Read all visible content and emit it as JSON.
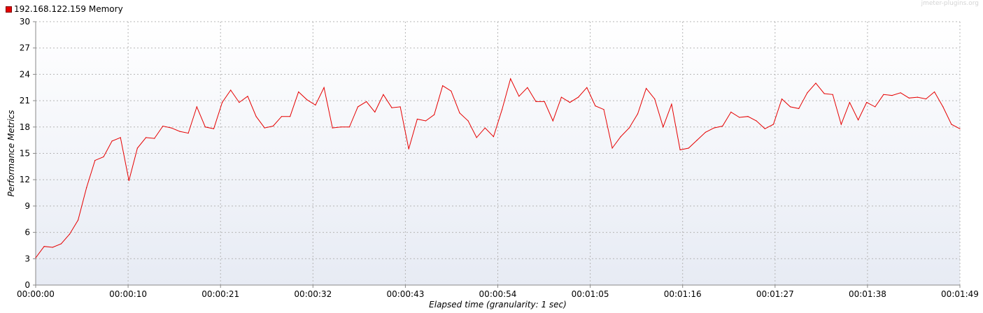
{
  "legend": {
    "label": "192.168.122.159 Memory",
    "color": "#e60000",
    "icon": "legend-square"
  },
  "watermark": "jmeter-plugins.org",
  "chart_data": {
    "type": "line",
    "title": "",
    "xlabel": "Elapsed time (granularity: 1 sec)",
    "ylabel": "Performance Metrics",
    "ylim": [
      0,
      30
    ],
    "xlim_seconds": [
      0,
      109
    ],
    "y_ticks": [
      "0",
      "3",
      "6",
      "9",
      "12",
      "15",
      "18",
      "21",
      "24",
      "27",
      "30"
    ],
    "x_ticks": [
      {
        "label": "00:00:00",
        "t": 0
      },
      {
        "label": "00:00:10",
        "t": 10.9
      },
      {
        "label": "00:00:21",
        "t": 21.8
      },
      {
        "label": "00:00:32",
        "t": 32.7
      },
      {
        "label": "00:00:43",
        "t": 43.6
      },
      {
        "label": "00:00:54",
        "t": 54.5
      },
      {
        "label": "00:01:05",
        "t": 65.4
      },
      {
        "label": "00:01:16",
        "t": 76.3
      },
      {
        "label": "00:01:27",
        "t": 87.2
      },
      {
        "label": "00:01:38",
        "t": 98.1
      },
      {
        "label": "00:01:49",
        "t": 109
      }
    ],
    "grid": true,
    "legend_position": "top-left",
    "series": [
      {
        "name": "192.168.122.159 Memory",
        "color": "#e60000",
        "x": [
          0,
          1,
          2,
          3,
          4,
          5,
          6,
          7,
          8,
          9,
          10,
          11,
          12,
          13,
          14,
          15,
          16,
          17,
          18,
          19,
          20,
          21,
          22,
          23,
          24,
          25,
          26,
          27,
          28,
          29,
          30,
          31,
          32,
          33,
          34,
          35,
          36,
          37,
          38,
          39,
          40,
          41,
          42,
          43,
          44,
          45,
          46,
          47,
          48,
          49,
          50,
          51,
          52,
          53,
          54,
          55,
          56,
          57,
          58,
          59,
          60,
          61,
          62,
          63,
          64,
          65,
          66,
          67,
          68,
          69,
          70,
          71,
          72,
          73,
          74,
          75,
          76,
          77,
          78,
          79,
          80,
          81,
          82,
          83,
          84,
          85,
          86,
          87,
          88,
          89,
          90,
          91,
          92,
          93,
          94,
          95,
          96,
          97,
          98,
          99,
          100,
          101,
          102,
          103,
          104,
          105,
          106,
          107,
          108,
          109
        ],
        "values": [
          3.1,
          4.4,
          4.3,
          4.7,
          5.8,
          7.4,
          11.1,
          14.2,
          14.6,
          16.4,
          16.8,
          11.9,
          15.6,
          16.8,
          16.7,
          18.1,
          17.9,
          17.5,
          17.3,
          20.3,
          18.0,
          17.8,
          20.8,
          22.2,
          20.8,
          21.5,
          19.2,
          17.9,
          18.1,
          19.2,
          19.2,
          22.0,
          21.1,
          20.5,
          22.5,
          17.9,
          18.0,
          18.0,
          20.3,
          20.9,
          19.7,
          21.7,
          20.2,
          20.3,
          15.5,
          18.9,
          18.7,
          19.4,
          22.7,
          22.1,
          19.6,
          18.7,
          16.8,
          17.9,
          16.9,
          20.0,
          23.5,
          21.5,
          22.5,
          20.9,
          20.9,
          18.7,
          21.4,
          20.8,
          21.4,
          22.5,
          20.4,
          20.0,
          15.6,
          16.9,
          17.9,
          19.5,
          22.4,
          21.2,
          18.0,
          20.6,
          15.4,
          15.6,
          16.5,
          17.4,
          17.9,
          18.1,
          19.7,
          19.1,
          19.2,
          18.7,
          17.8,
          18.3,
          21.2,
          20.3,
          20.1,
          21.9,
          23.0,
          21.8,
          21.7,
          18.3,
          20.8,
          18.8,
          20.8,
          20.3,
          21.7,
          21.6,
          21.9,
          21.3,
          21.4,
          21.2,
          22.0,
          20.3,
          18.3,
          17.8
        ]
      }
    ]
  }
}
